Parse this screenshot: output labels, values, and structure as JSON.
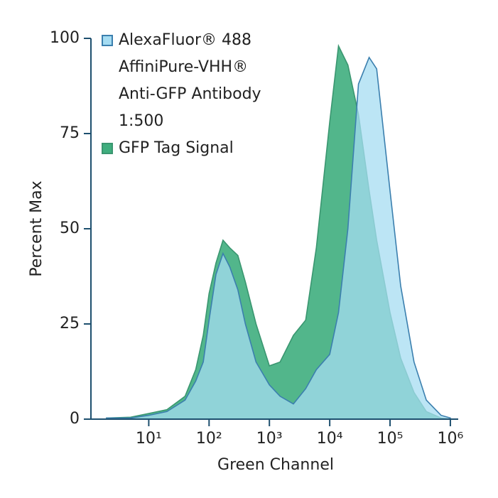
{
  "chart_data": {
    "type": "area",
    "xlabel": "Green Channel",
    "ylabel": "Percent Max",
    "xscale": "log",
    "xlim": [
      1.1,
      1350000
    ],
    "xticks": [
      {
        "value": 10,
        "label": "10¹"
      },
      {
        "value": 100,
        "label": "10²"
      },
      {
        "value": 1000,
        "label": "10³"
      },
      {
        "value": 10000,
        "label": "10⁴"
      },
      {
        "value": 100000,
        "label": "10⁵"
      },
      {
        "value": 1000000,
        "label": "10⁶"
      }
    ],
    "ylim": [
      0,
      100
    ],
    "yticks": [
      0,
      25,
      50,
      75,
      100
    ],
    "legend": "upper left",
    "x": [
      2,
      5,
      10,
      20,
      40,
      60,
      80,
      100,
      130,
      170,
      220,
      300,
      400,
      600,
      1000,
      1500,
      2500,
      4000,
      6000,
      10000,
      14000,
      20000,
      30000,
      45000,
      60000,
      100000,
      150000,
      250000,
      400000,
      700000,
      1000000
    ],
    "series": [
      {
        "name": "GFP Tag Signal",
        "color": "#3fae7e",
        "stroke": "#3a9670",
        "values": [
          0.3,
          0.5,
          1.5,
          2.5,
          6,
          13,
          22,
          33,
          41,
          47,
          45,
          43,
          36,
          25,
          14,
          15,
          22,
          26,
          45,
          78,
          98,
          93,
          80,
          60,
          47,
          28,
          16,
          7,
          2,
          0.3,
          0
        ]
      },
      {
        "name": "AlexaFluor® 488\nAffiniPure-VHH®\nAnti-GFP Antibody\n1:500",
        "color": "#a5dcf2",
        "stroke": "#3b7fae",
        "values": [
          0.3,
          0.3,
          1,
          2,
          5,
          10,
          15,
          26,
          38,
          43.5,
          40,
          34,
          25,
          15,
          9,
          6,
          4,
          8,
          13,
          17,
          28,
          50,
          88,
          95,
          92,
          60,
          35,
          15,
          5,
          1,
          0.3
        ]
      }
    ]
  }
}
